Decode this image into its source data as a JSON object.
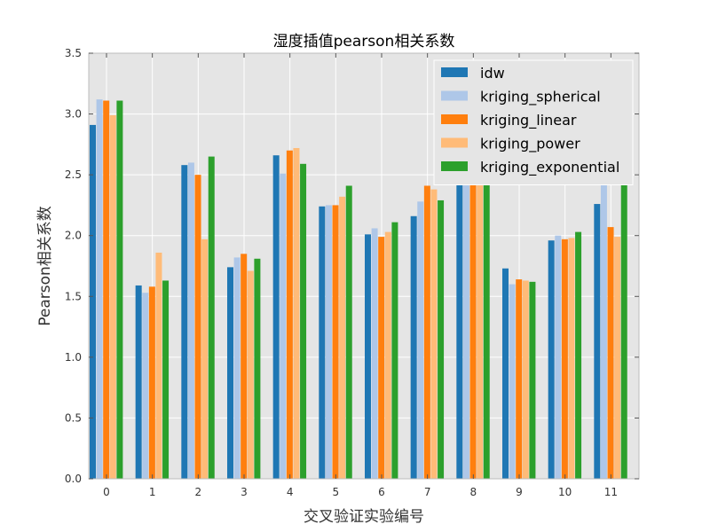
{
  "chart_data": {
    "type": "bar",
    "title": "湿度插值pearson相关系数",
    "xlabel": "交叉验证实验编号",
    "ylabel": "Pearson相关系数",
    "categories": [
      "0",
      "1",
      "2",
      "3",
      "4",
      "5",
      "6",
      "7",
      "8",
      "9",
      "10",
      "11"
    ],
    "ylim": [
      0,
      3.5
    ],
    "yticks": [
      "0.0",
      "0.5",
      "1.0",
      "1.5",
      "2.0",
      "2.5",
      "3.0",
      "3.5"
    ],
    "grid": true,
    "legend_position": "top-right",
    "series": [
      {
        "name": "idw",
        "color": "#1f77b4",
        "values": [
          2.91,
          1.59,
          2.58,
          1.74,
          2.66,
          2.24,
          2.01,
          2.16,
          2.44,
          1.73,
          1.96,
          2.26
        ]
      },
      {
        "name": "kriging_spherical",
        "color": "#aec7e8",
        "values": [
          3.12,
          1.53,
          2.6,
          1.82,
          2.51,
          2.25,
          2.06,
          2.28,
          2.44,
          1.6,
          2.0,
          2.43
        ]
      },
      {
        "name": "kriging_linear",
        "color": "#ff7f0e",
        "values": [
          3.11,
          1.58,
          2.5,
          1.85,
          2.7,
          2.25,
          1.99,
          2.41,
          2.44,
          1.64,
          1.97,
          2.07
        ]
      },
      {
        "name": "kriging_power",
        "color": "#ffbb78",
        "values": [
          2.99,
          1.86,
          1.97,
          1.71,
          2.72,
          2.32,
          2.03,
          2.38,
          2.44,
          1.63,
          1.98,
          1.99
        ]
      },
      {
        "name": "kriging_exponential",
        "color": "#2ca02c",
        "values": [
          3.11,
          1.63,
          2.65,
          1.81,
          2.59,
          2.41,
          2.11,
          2.29,
          2.44,
          1.62,
          2.03,
          2.43
        ]
      }
    ]
  }
}
